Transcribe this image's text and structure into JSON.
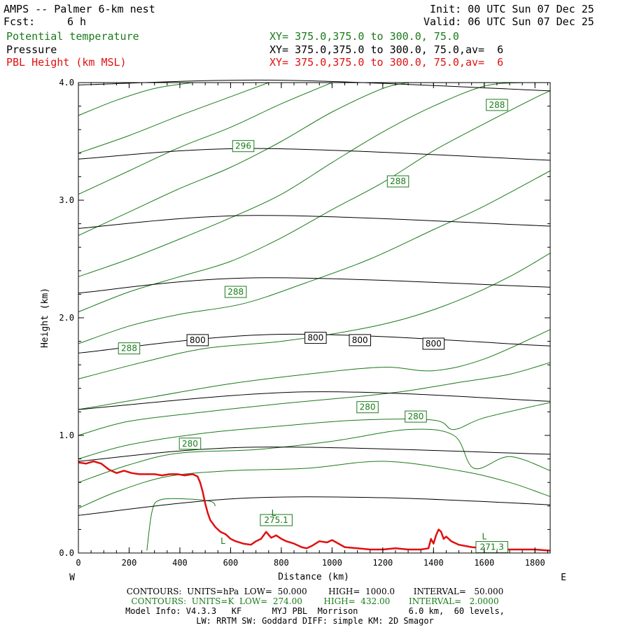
{
  "header": {
    "title": "AMPS -- Palmer 6-km nest",
    "fcst_label": "Fcst:",
    "fcst_value": "6 h",
    "init": "Init: 00 UTC Sun 07 Dec 25",
    "valid": "Valid: 06 UTC Sun 07 Dec 25",
    "field1": "Potential temperature",
    "field1_xy": "XY= 375.0,375.0 to 300.0, 75.0",
    "field2": "Pressure",
    "field2_xy": "XY= 375.0,375.0 to 300.0, 75.0,av=  6",
    "field3": "PBL Height (km MSL)",
    "field3_xy": "XY= 375.0,375.0 to 300.0, 75.0,av=  6"
  },
  "colors": {
    "theta": "#1a7a1a",
    "pressure": "#000000",
    "pbl": "#e01010"
  },
  "footer": {
    "contours_p": "CONTOURS:  UNITS=hPa  LOW=  50.000        HIGH=  1000.0       INTERVAL=   50.000",
    "contours_t": "CONTOURS:  UNITS=K  LOW=  274.00        HIGH=  432.00       INTERVAL=   2.0000",
    "model_info": "Model Info: V4.3.3   KF      MYJ PBL  Morrison          6.0 km,  60 levels,",
    "physics": "LW: RRTM SW: Goddard DIFF: simple KM: 2D Smagor"
  },
  "chart_data": {
    "type": "line",
    "xlabel": "Distance (km)",
    "ylabel": "Height (km)",
    "xlim": [
      0,
      1860
    ],
    "ylim": [
      0,
      4.0
    ],
    "x_ticks": [
      "0",
      "200",
      "400",
      "600",
      "800",
      "1000",
      "1200",
      "1400",
      "1600",
      "1800"
    ],
    "y_ticks": [
      "0.0",
      "1.0",
      "2.0",
      "3.0",
      "4.0"
    ],
    "left_end_label": "W",
    "right_end_label": "E",
    "pressure_contours": [
      {
        "x": [
          0,
          600,
          1200,
          1860
        ],
        "y": [
          0.32,
          0.46,
          0.47,
          0.41
        ]
      },
      {
        "x": [
          0,
          700,
          1860
        ],
        "y": [
          0.78,
          0.9,
          0.84
        ]
      },
      {
        "x": [
          0,
          900,
          1860
        ],
        "y": [
          1.22,
          1.37,
          1.29
        ]
      },
      {
        "x": [
          0,
          800,
          1860
        ],
        "y": [
          1.7,
          1.86,
          1.76
        ]
      },
      {
        "x": [
          0,
          700,
          1860
        ],
        "y": [
          2.21,
          2.34,
          2.26
        ]
      },
      {
        "x": [
          0,
          700,
          1860
        ],
        "y": [
          2.76,
          2.87,
          2.78
        ]
      },
      {
        "x": [
          0,
          700,
          1860
        ],
        "y": [
          3.35,
          3.44,
          3.34
        ]
      },
      {
        "x": [
          0,
          800,
          1860
        ],
        "y": [
          3.98,
          4.02,
          3.93
        ]
      }
    ],
    "pressure_labels": [
      {
        "text": "800",
        "x": 470,
        "y": 1.81
      },
      {
        "text": "800",
        "x": 935,
        "y": 1.83
      },
      {
        "text": "800",
        "x": 1110,
        "y": 1.81
      },
      {
        "text": "800",
        "x": 1400,
        "y": 1.78
      }
    ],
    "theta_contours": [
      {
        "x": [
          270,
          290,
          320,
          420,
          520,
          540
        ],
        "y": [
          0.02,
          0.35,
          0.45,
          0.46,
          0.44,
          0.4
        ]
      },
      {
        "x": [
          0,
          150,
          350,
          600,
          900,
          1200,
          1500,
          1700,
          1860
        ],
        "y": [
          0.38,
          0.52,
          0.65,
          0.7,
          0.72,
          0.78,
          0.7,
          0.6,
          0.48
        ]
      },
      {
        "x": [
          0,
          200,
          400,
          700,
          1000,
          1300,
          1480,
          1560,
          1700,
          1860
        ],
        "y": [
          0.6,
          0.75,
          0.85,
          0.88,
          0.95,
          1.05,
          1.0,
          0.72,
          0.82,
          0.7
        ]
      },
      {
        "x": [
          0,
          200,
          500,
          800,
          1100,
          1400,
          1480,
          1600,
          1860
        ],
        "y": [
          0.8,
          0.92,
          1.02,
          1.08,
          1.13,
          1.13,
          1.05,
          1.15,
          1.28
        ]
      },
      {
        "x": [
          0,
          200,
          500,
          800,
          1100,
          1300,
          1500,
          1700,
          1860
        ],
        "y": [
          1.0,
          1.12,
          1.2,
          1.27,
          1.33,
          1.38,
          1.45,
          1.52,
          1.62
        ]
      },
      {
        "x": [
          0,
          300,
          600,
          900,
          1200,
          1400,
          1600,
          1860
        ],
        "y": [
          1.22,
          1.33,
          1.44,
          1.52,
          1.58,
          1.55,
          1.65,
          1.9
        ]
      },
      {
        "x": [
          0,
          250,
          500,
          800,
          1100,
          1300,
          1500,
          1700,
          1860
        ],
        "y": [
          1.48,
          1.62,
          1.74,
          1.8,
          1.9,
          2.0,
          2.15,
          2.35,
          2.55
        ]
      },
      {
        "x": [
          0,
          200,
          400,
          650,
          900,
          1150,
          1400,
          1600,
          1860
        ],
        "y": [
          1.78,
          1.93,
          2.03,
          2.12,
          2.3,
          2.5,
          2.75,
          2.95,
          3.25
        ]
      },
      {
        "x": [
          0,
          200,
          400,
          600,
          800,
          1000,
          1200,
          1400,
          1600,
          1800,
          1860
        ],
        "y": [
          2.05,
          2.22,
          2.35,
          2.48,
          2.68,
          2.92,
          3.15,
          3.42,
          3.65,
          3.87,
          3.93
        ]
      },
      {
        "x": [
          0,
          200,
          400,
          600,
          800,
          1000,
          1200,
          1400,
          1600,
          1750
        ],
        "y": [
          2.35,
          2.5,
          2.67,
          2.85,
          3.05,
          3.32,
          3.58,
          3.8,
          3.97,
          4.0
        ]
      },
      {
        "x": [
          0,
          200,
          400,
          600,
          800,
          1000,
          1200,
          1300
        ],
        "y": [
          2.7,
          2.9,
          3.1,
          3.28,
          3.5,
          3.75,
          3.95,
          4.0
        ]
      },
      {
        "x": [
          0,
          200,
          400,
          600,
          800,
          1000
        ],
        "y": [
          3.05,
          3.25,
          3.45,
          3.62,
          3.82,
          4.0
        ]
      },
      {
        "x": [
          0,
          200,
          400,
          600,
          750
        ],
        "y": [
          3.4,
          3.55,
          3.72,
          3.88,
          4.0
        ]
      },
      {
        "x": [
          0,
          150,
          300,
          450
        ],
        "y": [
          3.72,
          3.85,
          3.95,
          4.0
        ]
      }
    ],
    "theta_labels": [
      {
        "text": "296",
        "x": 650,
        "y": 3.46
      },
      {
        "text": "288",
        "x": 1650,
        "y": 3.81
      },
      {
        "text": "288",
        "x": 1260,
        "y": 3.16
      },
      {
        "text": "288",
        "x": 620,
        "y": 2.22
      },
      {
        "text": "288",
        "x": 200,
        "y": 1.74
      },
      {
        "text": "280",
        "x": 1140,
        "y": 1.24
      },
      {
        "text": "280",
        "x": 1330,
        "y": 1.16
      },
      {
        "text": "280",
        "x": 440,
        "y": 0.93
      },
      {
        "text": "275.1",
        "x": 780,
        "y": 0.28
      },
      {
        "text": "271.3",
        "x": 1630,
        "y": 0.05
      }
    ],
    "low_markers": [
      {
        "text": "L",
        "x": 570,
        "y": 0.1
      },
      {
        "text": "L",
        "x": 770,
        "y": 0.34
      },
      {
        "text": "L",
        "x": 1600,
        "y": 0.14
      }
    ],
    "pbl_height": {
      "name": "PBL Height (km MSL)",
      "x": [
        0,
        30,
        60,
        90,
        120,
        150,
        180,
        210,
        240,
        270,
        300,
        330,
        360,
        390,
        420,
        450,
        470,
        480,
        490,
        500,
        510,
        520,
        540,
        560,
        580,
        600,
        620,
        650,
        680,
        700,
        720,
        740,
        760,
        780,
        800,
        820,
        850,
        880,
        900,
        920,
        950,
        980,
        1000,
        1050,
        1100,
        1150,
        1200,
        1250,
        1300,
        1350,
        1380,
        1390,
        1400,
        1410,
        1420,
        1430,
        1440,
        1450,
        1470,
        1500,
        1550,
        1600,
        1650,
        1700,
        1750,
        1800,
        1860
      ],
      "y": [
        0.77,
        0.76,
        0.78,
        0.76,
        0.71,
        0.68,
        0.7,
        0.68,
        0.67,
        0.67,
        0.67,
        0.66,
        0.67,
        0.67,
        0.66,
        0.67,
        0.65,
        0.6,
        0.52,
        0.42,
        0.34,
        0.28,
        0.22,
        0.18,
        0.16,
        0.12,
        0.1,
        0.08,
        0.07,
        0.1,
        0.12,
        0.18,
        0.13,
        0.15,
        0.12,
        0.1,
        0.08,
        0.05,
        0.04,
        0.06,
        0.1,
        0.09,
        0.11,
        0.05,
        0.04,
        0.03,
        0.03,
        0.04,
        0.03,
        0.03,
        0.04,
        0.12,
        0.08,
        0.15,
        0.2,
        0.18,
        0.12,
        0.14,
        0.1,
        0.07,
        0.05,
        0.04,
        0.03,
        0.03,
        0.03,
        0.03,
        0.02
      ]
    }
  }
}
